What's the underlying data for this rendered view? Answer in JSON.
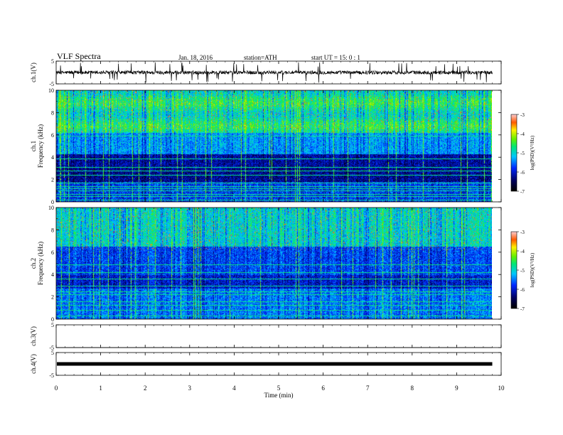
{
  "header": {
    "title": "VLF Spectra",
    "date": "Jan. 18, 2016",
    "station": "station=ATH",
    "start": "start UT =   15: 0  : 1"
  },
  "chart_data": [
    {
      "type": "line",
      "panel": "ch1-waveform",
      "ylabel": "ch.1(V)",
      "ylim": [
        -5,
        5
      ],
      "y_ticks": [
        "5",
        "-5"
      ],
      "baseline": 0,
      "color": "#000000"
    },
    {
      "type": "heatmap",
      "panel": "ch1-spectrogram",
      "ylabel_channel": "ch.1",
      "ylabel": "Frequency (kHz)",
      "ylim": [
        0,
        10
      ],
      "y_ticks": [
        "0",
        "2",
        "4",
        "6",
        "8",
        "10"
      ],
      "colorbar": {
        "label": "log(PSD)(V²/Hz)",
        "range": [
          -7,
          -3
        ],
        "ticks": [
          "-3",
          "-4",
          "-5",
          "-6",
          "-7"
        ]
      },
      "bands_khz": [
        0.2,
        0.5,
        0.7,
        1.0,
        1.2,
        1.4,
        1.7,
        2.4,
        2.8,
        3.1,
        3.9,
        5.9
      ]
    },
    {
      "type": "heatmap",
      "panel": "ch2-spectrogram",
      "ylabel_channel": "ch.2",
      "ylabel": "Frequency (kHz)",
      "ylim": [
        0,
        10
      ],
      "y_ticks": [
        "0",
        "2",
        "4",
        "6",
        "8",
        "10"
      ],
      "colorbar": {
        "label": "log(PSD)(V²/Hz)",
        "range": [
          -7,
          -3
        ],
        "ticks": [
          "-3",
          "-4",
          "-5",
          "-6",
          "-7"
        ]
      },
      "bands_khz": [
        0.3,
        0.8,
        1.3,
        1.6,
        2.2,
        2.5,
        3.0,
        3.6,
        4.2,
        4.9
      ]
    },
    {
      "type": "line",
      "panel": "ch3-waveform",
      "ylabel": "ch.3(V)",
      "ylim": [
        -5,
        5
      ],
      "y_ticks": [
        "5",
        "-5"
      ],
      "baseline": -5,
      "color": "#000000"
    },
    {
      "type": "line",
      "panel": "ch4-waveform",
      "ylabel": "ch.4(V)",
      "ylim": [
        -5,
        5
      ],
      "y_ticks": [
        "5",
        "-5"
      ],
      "baseline": 0,
      "color": "#000000"
    }
  ],
  "x_axis": {
    "label": "Time (min)",
    "range": [
      0,
      10
    ],
    "ticks": [
      "0",
      "1",
      "2",
      "3",
      "4",
      "5",
      "6",
      "7",
      "8",
      "9",
      "10"
    ],
    "data_end": 9.8
  }
}
